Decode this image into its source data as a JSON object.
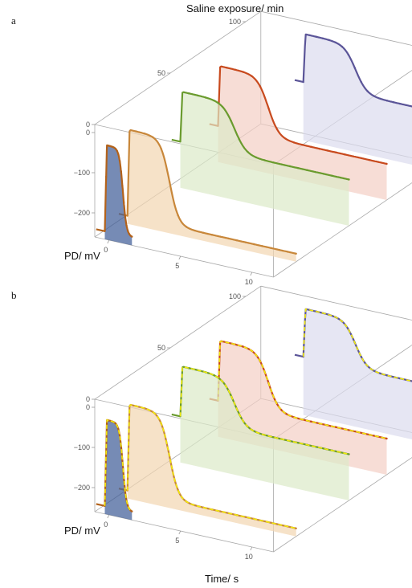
{
  "figure": {
    "top_title": "Saline exposure/ min",
    "bottom_title": "Time/ s"
  },
  "colors": {
    "trace_0": "#b3621a",
    "fill_0": "#3c5a96",
    "trace_15": "#c8873a",
    "fill_15": "#f2d6b0",
    "trace_50": "#6a9b2e",
    "fill_50": "#dce9c8",
    "trace_75": "#c84a1e",
    "fill_75": "#f3cec4",
    "trace_100": "#5b5598",
    "fill_100": "#dcdcee",
    "fit": "#f2ea0c"
  },
  "chart_data": [
    {
      "type": "line",
      "panel_label": "a",
      "xlabel": "",
      "ylabel": "PD/ mV",
      "zlabel": "Saline exposure/ min",
      "x_ticks": [
        0,
        5,
        10
      ],
      "y_ticks": [
        0,
        -100,
        -200
      ],
      "z_ticks": [
        0,
        50,
        100
      ],
      "xlim": [
        -1,
        11.5
      ],
      "ylim": [
        -260,
        20
      ],
      "zlim": [
        0,
        110
      ],
      "series": [
        {
          "exposure_min": 0,
          "resting_mV": -240,
          "plateau_mV": -25,
          "duration_s": 1.6,
          "start_s": -0.3,
          "end_s": 1.6,
          "fill": true
        },
        {
          "exposure_min": 15,
          "resting_mV": -240,
          "plateau_mV": -25,
          "duration_s": 4.0,
          "start_s": -0.3,
          "end_s": 11.5,
          "fill": true
        },
        {
          "exposure_min": 50,
          "resting_mV": -145,
          "plateau_mV": -20,
          "duration_s": 5.2,
          "start_s": -0.3,
          "end_s": 11.5,
          "fill": true
        },
        {
          "exposure_min": 75,
          "resting_mV": -170,
          "plateau_mV": -20,
          "duration_s": 4.8,
          "start_s": -0.3,
          "end_s": 11.5,
          "fill": true
        },
        {
          "exposure_min": 105,
          "resting_mV": -115,
          "plateau_mV": 5,
          "duration_s": 5.0,
          "start_s": 2.5,
          "end_s": 11.5,
          "fill": true
        }
      ]
    },
    {
      "type": "line",
      "panel_label": "b",
      "xlabel": "Time/ s",
      "ylabel": "PD/ mV",
      "zlabel": "",
      "x_ticks": [
        0,
        5,
        10
      ],
      "y_ticks": [
        0,
        -100,
        -200
      ],
      "z_ticks": [
        0,
        50,
        100
      ],
      "xlim": [
        -1,
        11.5
      ],
      "ylim": [
        -260,
        20
      ],
      "zlim": [
        0,
        110
      ],
      "series": [
        {
          "exposure_min": 0,
          "resting_mV": -240,
          "plateau_mV": -25,
          "duration_s": 1.6,
          "start_s": -0.3,
          "end_s": 1.6,
          "fill": true,
          "fit": true
        },
        {
          "exposure_min": 15,
          "resting_mV": -240,
          "plateau_mV": -25,
          "duration_s": 4.0,
          "start_s": -0.3,
          "end_s": 11.5,
          "fill": true,
          "fit": true
        },
        {
          "exposure_min": 50,
          "resting_mV": -145,
          "plateau_mV": -20,
          "duration_s": 5.2,
          "start_s": -0.3,
          "end_s": 11.5,
          "fill": true,
          "fit": true
        },
        {
          "exposure_min": 75,
          "resting_mV": -170,
          "plateau_mV": -20,
          "duration_s": 4.8,
          "start_s": -0.3,
          "end_s": 11.5,
          "fill": true,
          "fit": true
        },
        {
          "exposure_min": 105,
          "resting_mV": -115,
          "plateau_mV": 5,
          "duration_s": 5.0,
          "start_s": 2.5,
          "end_s": 11.5,
          "fill": true,
          "fit": true
        }
      ]
    }
  ]
}
